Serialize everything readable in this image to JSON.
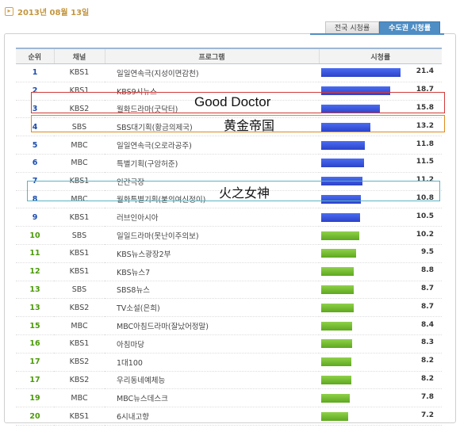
{
  "header": {
    "date": "2013년 08월 13일",
    "date_icon": "arrow-right-icon"
  },
  "tabs": [
    {
      "label": "전국 시청률",
      "active": false
    },
    {
      "label": "수도권 시청률",
      "active": true
    }
  ],
  "columns": {
    "rank": "순위",
    "channel": "채널",
    "program": "프로그램",
    "rating": "시청률"
  },
  "colors": {
    "blue_bar": "#2f4ad0",
    "green_bar": "#6cb82a",
    "header_blue": "#4f8ec4"
  },
  "rows": [
    {
      "rank": "1",
      "channel": "KBS1",
      "program": "일일연속극(지성이면감천)",
      "rating": "21.4",
      "rating_value": 21.4,
      "color": "blue"
    },
    {
      "rank": "2",
      "channel": "KBS1",
      "program": "KBS9시뉴스",
      "rating": "18.7",
      "rating_value": 18.7,
      "color": "blue"
    },
    {
      "rank": "3",
      "channel": "KBS2",
      "program": "월화드라마(굿닥터)",
      "rating": "15.8",
      "rating_value": 15.8,
      "color": "blue"
    },
    {
      "rank": "4",
      "channel": "SBS",
      "program": "SBS대기획(황금의제국)",
      "rating": "13.2",
      "rating_value": 13.2,
      "color": "blue"
    },
    {
      "rank": "5",
      "channel": "MBC",
      "program": "일일연속극(오로라공주)",
      "rating": "11.8",
      "rating_value": 11.8,
      "color": "blue"
    },
    {
      "rank": "6",
      "channel": "MBC",
      "program": "특별기획(구암허준)",
      "rating": "11.5",
      "rating_value": 11.5,
      "color": "blue"
    },
    {
      "rank": "7",
      "channel": "KBS1",
      "program": "인간극장",
      "rating": "11.2",
      "rating_value": 11.2,
      "color": "blue"
    },
    {
      "rank": "8",
      "channel": "MBC",
      "program": "월화특별기획(불의여신정이)",
      "rating": "10.8",
      "rating_value": 10.8,
      "color": "blue"
    },
    {
      "rank": "9",
      "channel": "KBS1",
      "program": "러브인아시아",
      "rating": "10.5",
      "rating_value": 10.5,
      "color": "blue"
    },
    {
      "rank": "10",
      "channel": "SBS",
      "program": "일일드라마(못난이주의보)",
      "rating": "10.2",
      "rating_value": 10.2,
      "color": "green"
    },
    {
      "rank": "11",
      "channel": "KBS1",
      "program": "KBS뉴스광장2부",
      "rating": "9.5",
      "rating_value": 9.5,
      "color": "green"
    },
    {
      "rank": "12",
      "channel": "KBS1",
      "program": "KBS뉴스7",
      "rating": "8.8",
      "rating_value": 8.8,
      "color": "green"
    },
    {
      "rank": "13",
      "channel": "SBS",
      "program": "SBS8뉴스",
      "rating": "8.7",
      "rating_value": 8.7,
      "color": "green"
    },
    {
      "rank": "13",
      "channel": "KBS2",
      "program": "TV소설(은희)",
      "rating": "8.7",
      "rating_value": 8.7,
      "color": "green"
    },
    {
      "rank": "15",
      "channel": "MBC",
      "program": "MBC아침드라마(잘났어정말)",
      "rating": "8.4",
      "rating_value": 8.4,
      "color": "green"
    },
    {
      "rank": "16",
      "channel": "KBS1",
      "program": "아침마당",
      "rating": "8.3",
      "rating_value": 8.3,
      "color": "green"
    },
    {
      "rank": "17",
      "channel": "KBS2",
      "program": "1대100",
      "rating": "8.2",
      "rating_value": 8.2,
      "color": "green"
    },
    {
      "rank": "17",
      "channel": "KBS2",
      "program": "우리동네예체능",
      "rating": "8.2",
      "rating_value": 8.2,
      "color": "green"
    },
    {
      "rank": "19",
      "channel": "MBC",
      "program": "MBC뉴스데스크",
      "rating": "7.8",
      "rating_value": 7.8,
      "color": "green"
    },
    {
      "rank": "20",
      "channel": "KBS1",
      "program": "6시내고향",
      "rating": "7.2",
      "rating_value": 7.2,
      "color": "green"
    }
  ],
  "annotations": [
    {
      "text": "Good Doctor",
      "row_rank": "3"
    },
    {
      "text": "黄金帝国",
      "row_rank": "4"
    },
    {
      "text": "火之女神",
      "row_rank": "8"
    }
  ]
}
